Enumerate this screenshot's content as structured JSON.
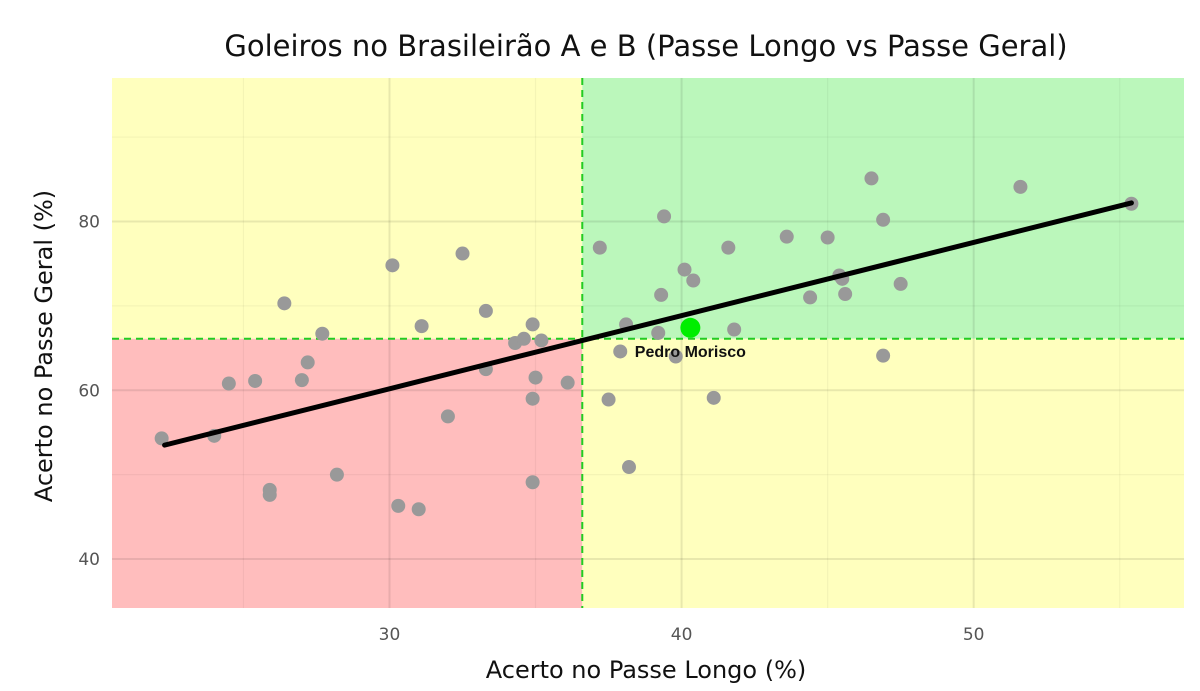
{
  "chart_data": {
    "type": "scatter",
    "title": "Goleiros no Brasileirão A e B (Passe Longo vs Passe Geral)",
    "xlabel": "Acerto no Passe Longo (%)",
    "ylabel": "Acerto no Passe Geral (%)",
    "xlim": [
      20.5,
      57.2
    ],
    "ylim": [
      34.2,
      97
    ],
    "x_ticks": [
      30,
      40,
      50
    ],
    "y_ticks": [
      40,
      60,
      80
    ],
    "grid": true,
    "reference_lines": {
      "x": 36.6,
      "y": 66.1
    },
    "quadrant_colors": {
      "top_right": "#bbf7bb",
      "bottom_left": "#ffbdbd",
      "top_left": "#ffffbe",
      "bottom_right": "#ffffbe"
    },
    "reference_line_color": "#22cc22",
    "point_color": "#999999",
    "highlight_color": "#00ee00",
    "trend_line": {
      "x": [
        22.3,
        55.4
      ],
      "y": [
        53.5,
        82.2
      ],
      "color": "#000000"
    },
    "points": {
      "x": [
        22.2,
        24.0,
        24.5,
        25.4,
        25.9,
        25.9,
        26.4,
        27.0,
        27.2,
        27.7,
        28.2,
        30.1,
        30.3,
        31.0,
        31.1,
        32.0,
        32.5,
        33.3,
        33.3,
        34.3,
        34.6,
        34.9,
        34.9,
        35.0,
        35.2,
        34.9,
        36.1,
        37.2,
        37.5,
        37.9,
        38.1,
        38.2,
        39.2,
        39.3,
        39.4,
        39.8,
        40.1,
        40.4,
        41.1,
        41.6,
        41.8,
        43.6,
        44.4,
        45.0,
        45.4,
        45.5,
        45.6,
        46.5,
        46.9,
        46.9,
        47.5,
        51.6,
        55.4
      ],
      "y": [
        54.3,
        54.6,
        60.8,
        61.1,
        48.2,
        47.6,
        70.3,
        61.2,
        63.3,
        66.7,
        50.0,
        74.8,
        46.3,
        45.9,
        67.6,
        56.9,
        76.2,
        69.4,
        62.5,
        65.6,
        66.1,
        67.8,
        59.0,
        61.5,
        65.9,
        49.1,
        60.9,
        76.9,
        58.9,
        64.6,
        67.8,
        50.9,
        66.8,
        71.3,
        80.6,
        64.0,
        74.3,
        73.0,
        59.1,
        76.9,
        67.2,
        78.2,
        71.0,
        78.1,
        73.6,
        73.2,
        71.4,
        85.1,
        80.2,
        64.1,
        72.6,
        84.1,
        82.1
      ]
    },
    "highlight": {
      "label": "Pedro Morisco",
      "x": 40.3,
      "y": 67.4
    }
  }
}
